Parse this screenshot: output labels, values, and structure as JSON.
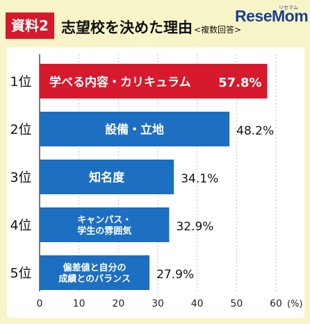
{
  "header": {
    "tag": "資料2",
    "title": "志望校を決めた理由",
    "subtitle": "<複数回答>",
    "logo": "ReseMom",
    "logo_sub": "リセマム"
  },
  "chart_data": {
    "type": "bar",
    "orientation": "horizontal",
    "categories": [
      "学べる内容・カリキュラム",
      "設備・立地",
      "知名度",
      "キャンパス・学生の雰囲気",
      "偏差値と自分の成績とのバランス"
    ],
    "category_lines": [
      [
        "学べる内容・カリキュラム"
      ],
      [
        "設備・立地"
      ],
      [
        "知名度"
      ],
      [
        "キャンパス・",
        "学生の雰囲気"
      ],
      [
        "偏差値と自分の",
        "成績とのバランス"
      ]
    ],
    "ranks": [
      "1位",
      "2位",
      "3位",
      "4位",
      "5位"
    ],
    "values": [
      57.8,
      48.2,
      34.1,
      32.9,
      27.9
    ],
    "value_unit": "%",
    "bar_colors": [
      "#d6192c",
      "#1d6fc1",
      "#1d6fc1",
      "#1d6fc1",
      "#1d6fc1"
    ],
    "xlim": [
      0,
      60
    ],
    "xticks": [
      "0",
      "10",
      "20",
      "30",
      "40",
      "50",
      "60"
    ],
    "x_unit": "(%)",
    "grid": true
  }
}
